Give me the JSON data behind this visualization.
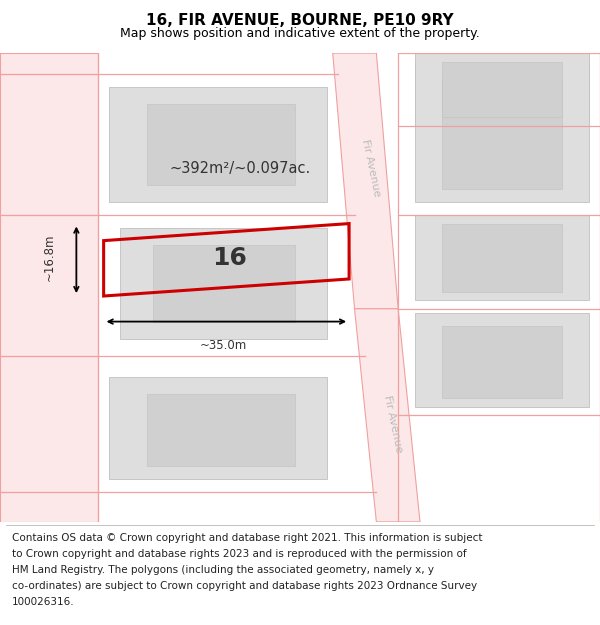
{
  "title": "16, FIR AVENUE, BOURNE, PE10 9RY",
  "subtitle": "Map shows position and indicative extent of the property.",
  "footer_lines": [
    "Contains OS data © Crown copyright and database right 2021. This information is subject",
    "to Crown copyright and database rights 2023 and is reproduced with the permission of",
    "HM Land Registry. The polygons (including the associated geometry, namely x, y",
    "co-ordinates) are subject to Crown copyright and database rights 2023 Ordnance Survey",
    "100026316."
  ],
  "area_label": "~392m²/~0.097ac.",
  "width_label": "~35.0m",
  "height_label": "~16.8m",
  "plot_number": "16",
  "bg_color": "#ffffff",
  "road_fill": "#fce8e8",
  "road_border": "#f0a0a0",
  "bld_fill": "#dedede",
  "bld_fill2": "#d0d0d0",
  "bld_border": "#c0c0c0",
  "highlight_border": "#cc0000",
  "dim_color": "#000000",
  "label_color": "#333333",
  "road_label_color": "#bbbbbb",
  "fir_avenue_label": "Fir Avenue",
  "title_fontsize": 11,
  "subtitle_fontsize": 9,
  "footer_fontsize": 7.5,
  "plot_number_fontsize": 18,
  "area_fontsize": 10.5,
  "dim_fontsize": 8.5,
  "road_label_fontsize": 8
}
